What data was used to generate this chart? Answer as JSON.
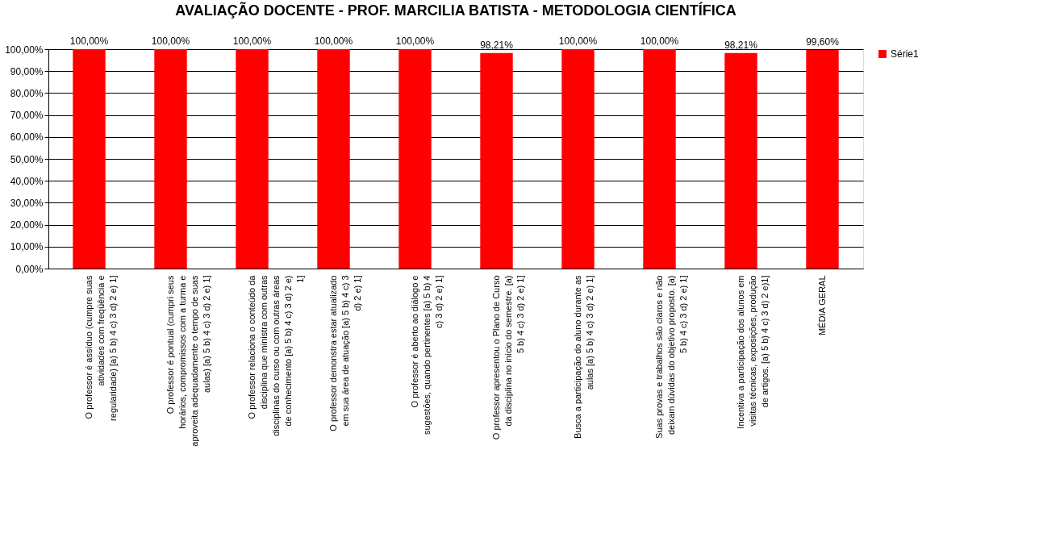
{
  "chart_data": {
    "type": "bar",
    "title": "AVALIAÇÃO DOCENTE - PROF. MARCILIA BATISTA - METODOLOGIA CIENTÍFICA",
    "categories": [
      "O professor é assíduo (cumpre suas atividades com freqüência e regularidade) [a) 5 b) 4 c) 3 d) 2 e) 1]",
      "O professor é pontual (cumpri seus horários, compromissos com a turma e aproveita adequadamente o tempo de suas aulas) [a) 5 b) 4 c) 3 d) 2 e) 1]",
      "O professor relaciona o conteúdo da disciplina que ministra com outras disciplinas do curso ou com outras áreas de conhecimento [a) 5 b) 4 c) 3 d) 2 e) 1]",
      "O professor demonstra estar atualizado em sua área de atuação [a) 5 b) 4 c) 3 d) 2 e) 1]",
      "O professor é aberto ao diálogo e sugestões, quando pertinentes [a) 5 b) 4 c) 3 d) 2 e) 1]",
      "O professor apresentou o Plano de Curso da disciplina no início do semestre. [a) 5 b) 4 c) 3 d) 2 e) 1]",
      "Busca a participação do aluno durante as aulas [a) 5 b) 4 c) 3 d) 2 e) 1]",
      "Suas provas e trabalhos são claros e não deixam dúvidas do objetivo proposto. [a) 5 b) 4 c) 3 d) 2 e) 1]",
      "Incentiva a participação dos alunos em visitas técnicas, exposições, produção de artigos. [a) 5 b) 4 c) 3 d) 2 e)1]",
      "MÉDIA GERAL"
    ],
    "series": [
      {
        "name": "Série1",
        "color": "#ff0000",
        "values": [
          100,
          100,
          100,
          100,
          100,
          98.21,
          100,
          100,
          98.21,
          99.6
        ],
        "value_labels": [
          "100,00%",
          "100,00%",
          "100,00%",
          "100,00%",
          "100,00%",
          "98,21%",
          "100,00%",
          "100,00%",
          "98,21%",
          "99,60%"
        ]
      }
    ],
    "ylim": [
      0,
      100
    ],
    "yticks": [
      {
        "value": 0,
        "label": "0,00%"
      },
      {
        "value": 10,
        "label": "10,00%"
      },
      {
        "value": 20,
        "label": "20,00%"
      },
      {
        "value": 30,
        "label": "30,00%"
      },
      {
        "value": 40,
        "label": "40,00%"
      },
      {
        "value": 50,
        "label": "50,00%"
      },
      {
        "value": 60,
        "label": "60,00%"
      },
      {
        "value": 70,
        "label": "70,00%"
      },
      {
        "value": 80,
        "label": "80,00%"
      },
      {
        "value": 90,
        "label": "90,00%"
      },
      {
        "value": 100,
        "label": "100,00%"
      }
    ],
    "grid": "y",
    "legend": "right"
  }
}
